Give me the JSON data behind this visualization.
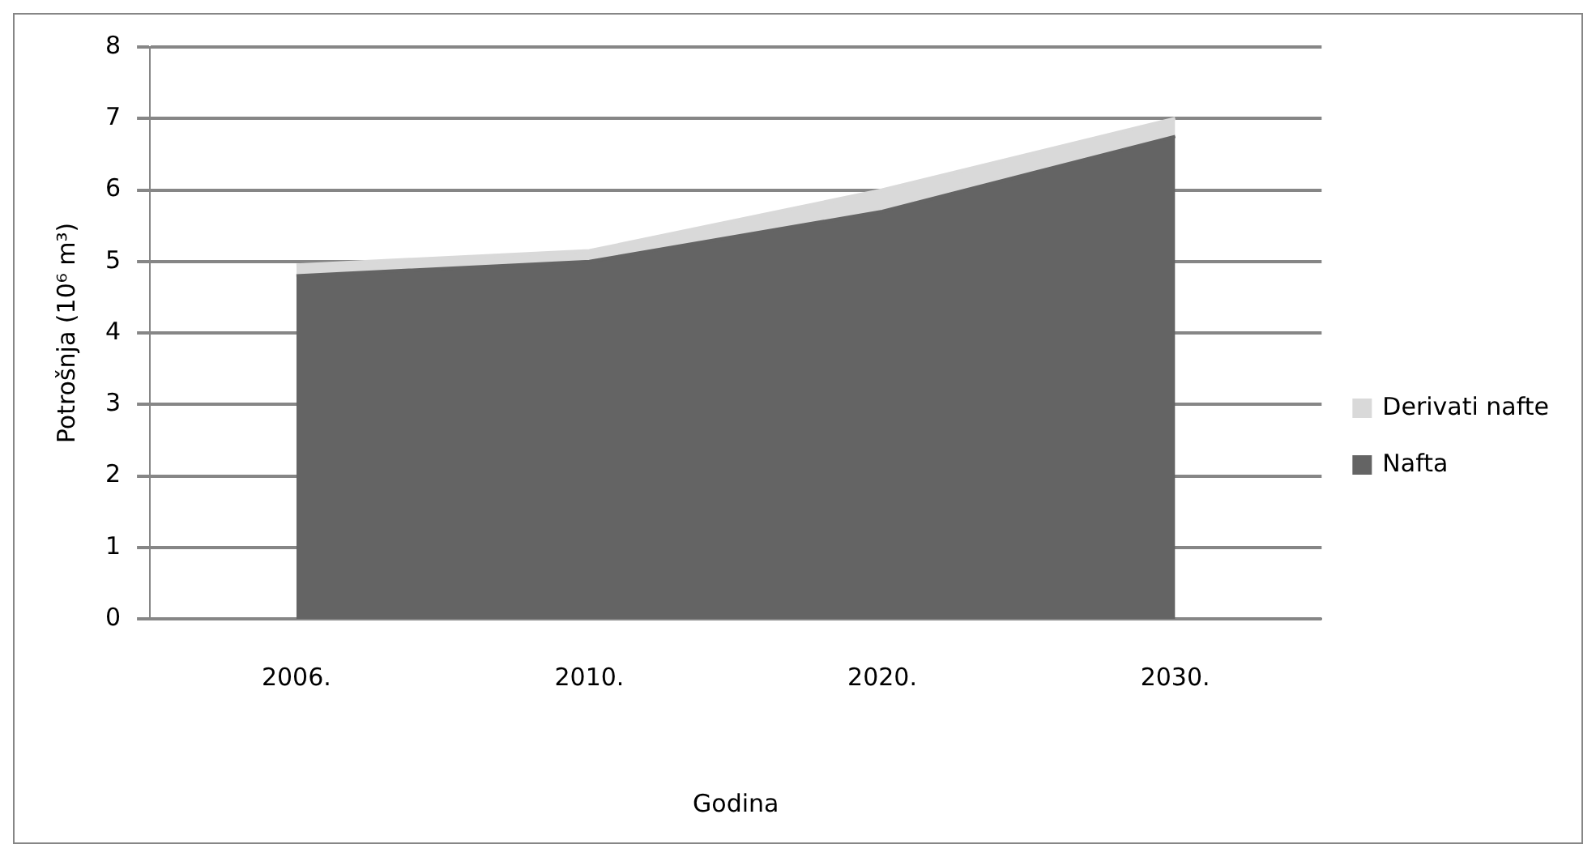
{
  "chart_data": {
    "type": "area",
    "stacked": true,
    "xlabel": "Godina",
    "ylabel": "Potrošnja (10⁶ m³)",
    "categories": [
      "2006.",
      "2010.",
      "2020.",
      "2030."
    ],
    "series": [
      {
        "name": "Nafta",
        "color": "#646464",
        "values": [
          4.8,
          5.0,
          5.7,
          6.75
        ]
      },
      {
        "name": "Derivati nafte",
        "color": "#d9d9d9",
        "values": [
          0.15,
          0.15,
          0.3,
          0.25
        ]
      }
    ],
    "ylim": [
      0,
      8
    ],
    "yticks": [
      0,
      1,
      2,
      3,
      4,
      5,
      6,
      7,
      8
    ],
    "grid": "y",
    "legend": "right"
  }
}
